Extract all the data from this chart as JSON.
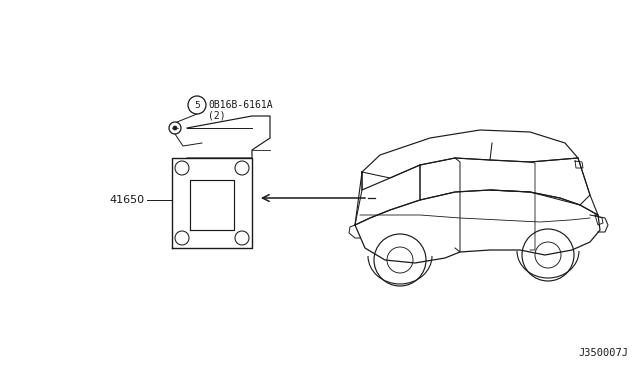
{
  "bg_color": "#ffffff",
  "line_color": "#1a1a1a",
  "part_label_41650": "41650",
  "bolt_label_number": "5",
  "bolt_label_text": "0B16B-6161A",
  "bolt_label_qty": "(2)",
  "diagram_code": "J350007J"
}
